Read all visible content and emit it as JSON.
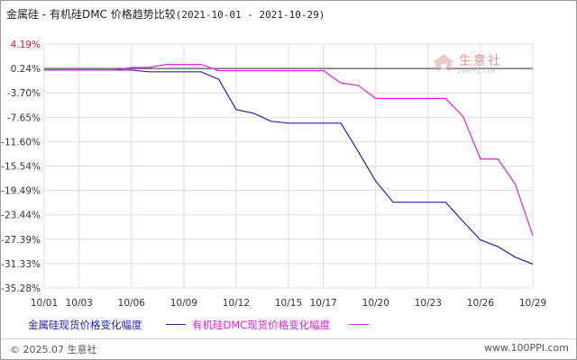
{
  "chart_data": {
    "type": "line",
    "title": "金属硅 - 有机硅DMC 价格趋势比较",
    "date_range": "(2021-10-01 - 2021-10-29)",
    "x": [
      "10/01",
      "10/02",
      "10/03",
      "10/04",
      "10/05",
      "10/06",
      "10/07",
      "10/08",
      "10/09",
      "10/10",
      "10/11",
      "10/12",
      "10/13",
      "10/14",
      "10/15",
      "10/16",
      "10/17",
      "10/18",
      "10/19",
      "10/20",
      "10/21",
      "10/22",
      "10/23",
      "10/24",
      "10/25",
      "10/26",
      "10/27",
      "10/28",
      "10/29"
    ],
    "x_tick_labels": [
      "10/01",
      "10/03",
      "10/06",
      "10/09",
      "10/12",
      "10/15",
      "10/17",
      "10/20",
      "10/23",
      "10/26",
      "10/29"
    ],
    "y_tick_labels": [
      "4.19%",
      "0.24%",
      "-3.70%",
      "-7.65%",
      "-11.60%",
      "-15.54%",
      "-19.49%",
      "-23.44%",
      "-27.39%",
      "-31.33%",
      "-35.28%"
    ],
    "ylim": [
      -35.28,
      4.19
    ],
    "y_unit": "%",
    "series": [
      {
        "name": "金属硅现货价格变化幅度",
        "color": "#2222aa",
        "values": [
          0,
          0,
          0,
          0,
          0,
          0,
          -0.3,
          -0.3,
          -0.3,
          -0.3,
          -1.5,
          -6.4,
          -7.0,
          -8.3,
          -8.6,
          -8.6,
          -8.6,
          -8.6,
          -13.2,
          -18.0,
          -21.4,
          -21.4,
          -21.4,
          -21.4,
          -24.5,
          -27.5,
          -28.6,
          -30.3,
          -31.4
        ]
      },
      {
        "name": "有机硅DMC现货价格变化幅度",
        "color": "#e020e0",
        "values": [
          0,
          0,
          0,
          0,
          0,
          0.4,
          0.4,
          0.9,
          0.9,
          0.9,
          -0.1,
          -0.1,
          -0.1,
          -0.1,
          -0.1,
          -0.1,
          -0.1,
          -2.1,
          -2.5,
          -4.6,
          -4.6,
          -4.6,
          -4.6,
          -4.6,
          -7.5,
          -14.4,
          -14.4,
          -18.5,
          -26.8
        ]
      }
    ],
    "baseline": 0.24,
    "grid": true
  },
  "legend": {
    "series1": "金属硅现货价格变化幅度",
    "series2": "有机硅DMC现货价格变化幅度"
  },
  "watermark": {
    "name": "生意社",
    "url": "100PPI.COM"
  },
  "footer": {
    "copyright": "© 2025.07 生意社",
    "site": "www.100PPI.com"
  }
}
